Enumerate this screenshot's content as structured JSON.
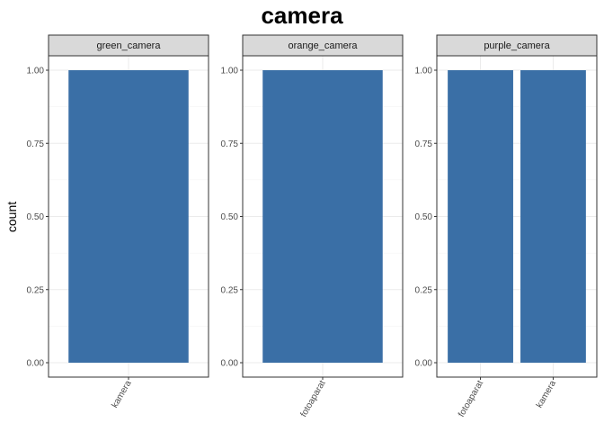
{
  "chart_data": {
    "type": "bar",
    "title": "camera",
    "xlabel": "",
    "ylabel": "count",
    "ylim": [
      0,
      1
    ],
    "yticks": [
      "0.00",
      "0.25",
      "0.50",
      "0.75",
      "1.00"
    ],
    "grid": true,
    "bar_color": "#3A6FA6",
    "panels": [
      {
        "label": "green_camera",
        "categories": [
          "kamera"
        ],
        "values": [
          1
        ]
      },
      {
        "label": "orange_camera",
        "categories": [
          "fotoaparat"
        ],
        "values": [
          1
        ]
      },
      {
        "label": "purple_camera",
        "categories": [
          "fotoaparat",
          "kamera"
        ],
        "values": [
          1,
          1
        ]
      }
    ]
  }
}
